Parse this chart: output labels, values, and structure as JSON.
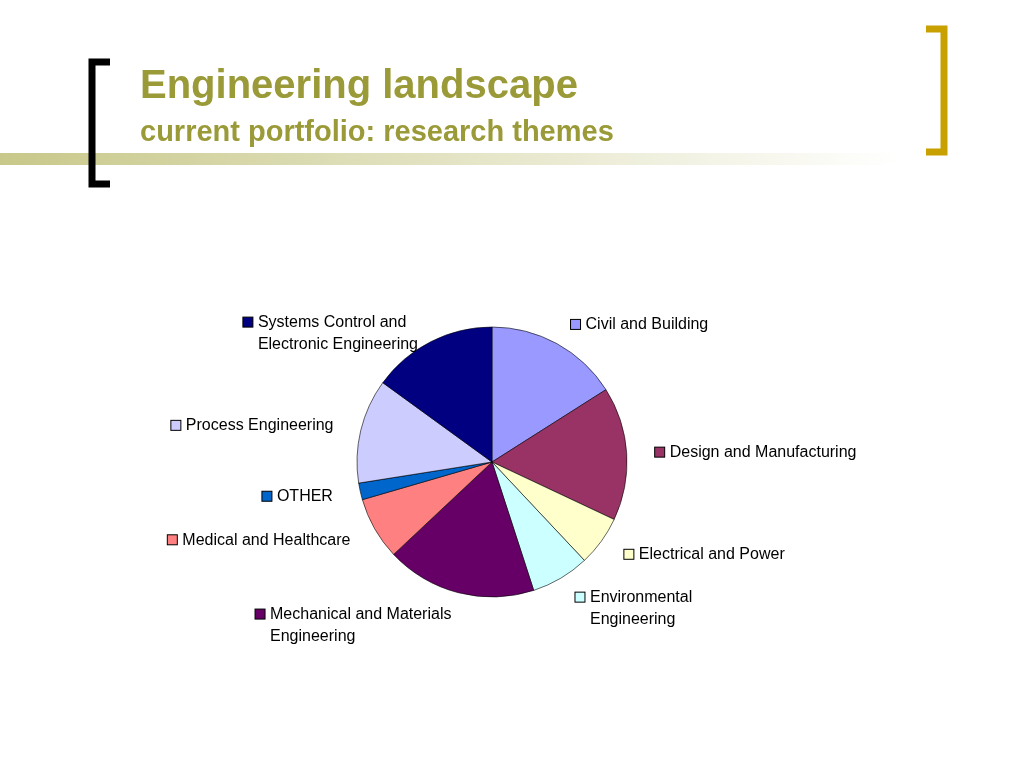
{
  "chart_data": {
    "type": "pie",
    "title": "Engineering landscape",
    "subtitle": "current portfolio: research themes",
    "categories": [
      "Civil and Building",
      "Design and Manufacturing",
      "Electrical and Power",
      "Environmental Engineering",
      "Mechanical and Materials Engineering",
      "Medical and Healthcare",
      "OTHER",
      "Process Engineering",
      "Systems Control and Electronic Engineering"
    ],
    "values": [
      16,
      16,
      6,
      7,
      18,
      7.5,
      2,
      12.5,
      15
    ],
    "colors": [
      "#9999ff",
      "#993366",
      "#ffffcc",
      "#ccffff",
      "#660066",
      "#ff8080",
      "#0066cc",
      "#ccccff",
      "#000080"
    ],
    "legend": "right"
  }
}
